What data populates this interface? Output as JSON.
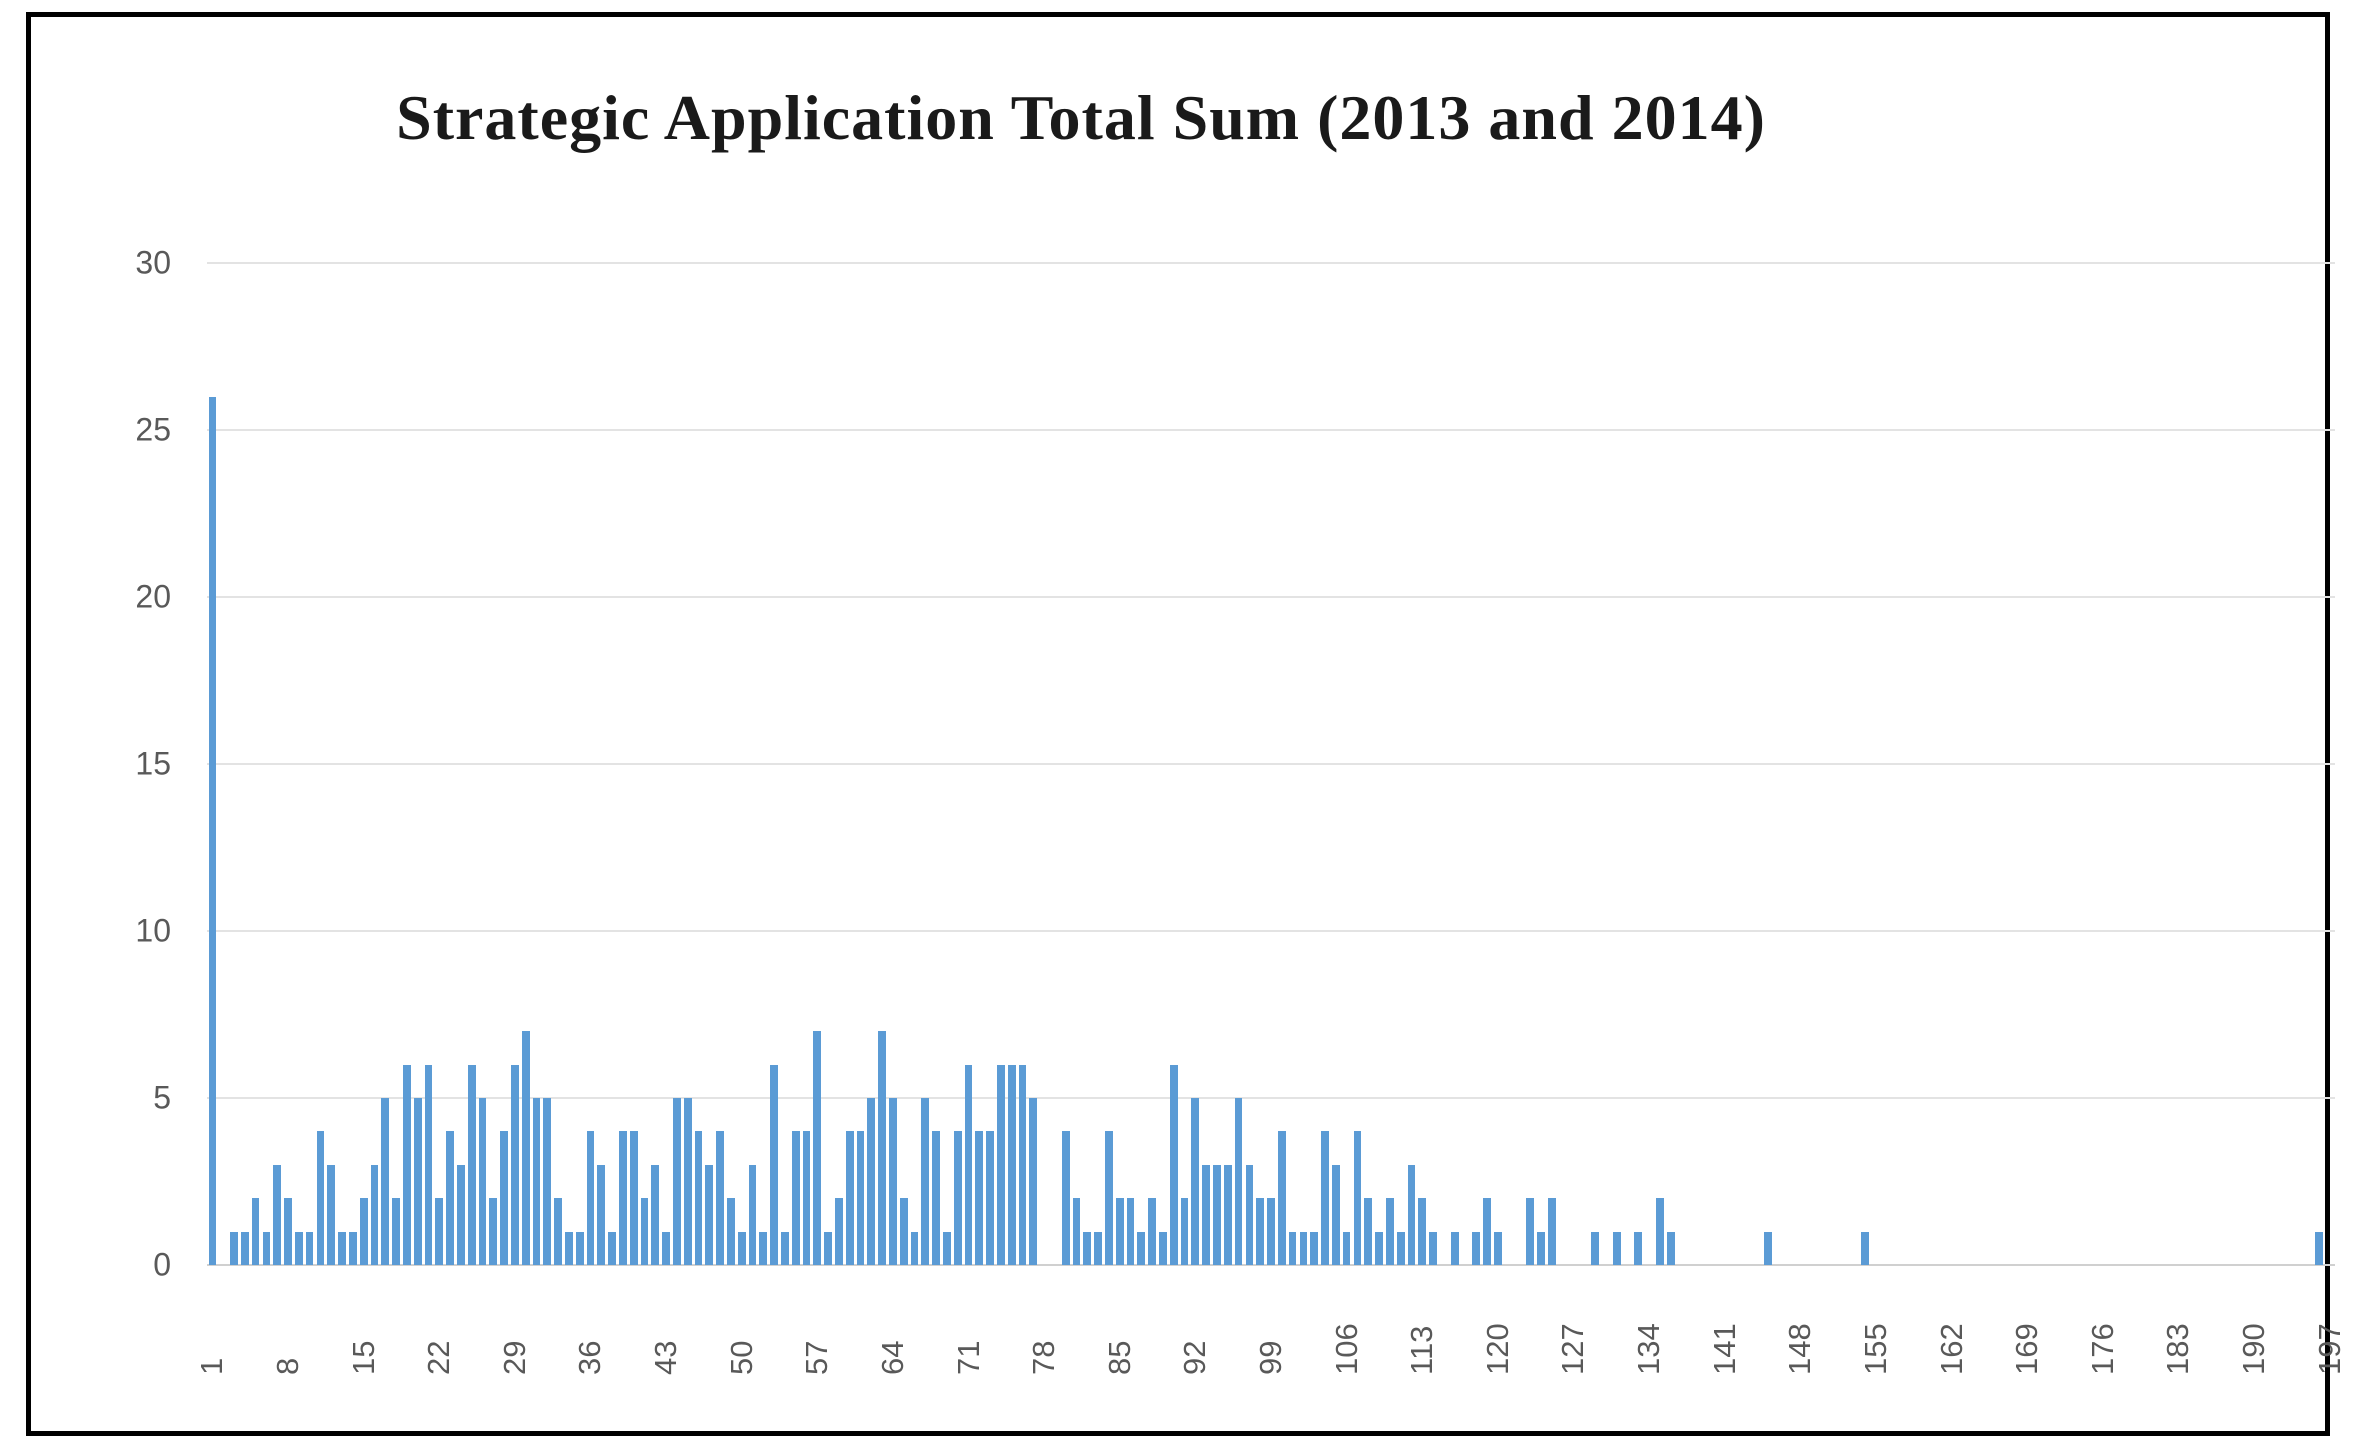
{
  "figure": {
    "title": "Strategic Application Total Sum (2013 and 2014)"
  },
  "chart_data": {
    "type": "bar",
    "title": "Strategic Application Total Sum (2013 and 2014)",
    "xlabel": "",
    "ylabel": "",
    "ylim": [
      0,
      30
    ],
    "yticks": [
      0,
      5,
      10,
      15,
      20,
      25,
      30
    ],
    "grid": true,
    "legend": "none",
    "bar_color": "#5b9bd5",
    "gridline_color": "#e3e3e3",
    "axis_label_color": "#595959",
    "categories_range": "1 to 197",
    "xtick_step": 7,
    "xtick_labels": [
      "1",
      "8",
      "15",
      "22",
      "29",
      "36",
      "43",
      "50",
      "57",
      "64",
      "71",
      "78",
      "85",
      "92",
      "99",
      "106",
      "113",
      "120",
      "127",
      "134",
      "141",
      "148",
      "155",
      "162",
      "169",
      "176",
      "183",
      "190",
      "197"
    ],
    "values": [
      26,
      0,
      1,
      1,
      2,
      1,
      3,
      2,
      1,
      1,
      4,
      3,
      1,
      1,
      2,
      3,
      5,
      2,
      6,
      5,
      6,
      2,
      4,
      3,
      6,
      5,
      2,
      4,
      6,
      7,
      5,
      5,
      2,
      1,
      1,
      4,
      3,
      1,
      4,
      4,
      2,
      3,
      1,
      5,
      5,
      4,
      3,
      4,
      2,
      1,
      3,
      1,
      6,
      1,
      4,
      4,
      7,
      1,
      2,
      4,
      4,
      5,
      7,
      5,
      2,
      1,
      5,
      4,
      1,
      4,
      6,
      4,
      4,
      6,
      6,
      6,
      5,
      0,
      0,
      4,
      2,
      1,
      1,
      4,
      2,
      2,
      1,
      2,
      1,
      6,
      2,
      5,
      3,
      3,
      3,
      5,
      3,
      2,
      2,
      4,
      1,
      1,
      1,
      4,
      3,
      1,
      4,
      2,
      1,
      2,
      1,
      3,
      2,
      1,
      0,
      1,
      0,
      1,
      2,
      1,
      0,
      0,
      2,
      1,
      2,
      0,
      0,
      0,
      1,
      0,
      1,
      0,
      1,
      0,
      2,
      1,
      0,
      0,
      0,
      0,
      0,
      0,
      0,
      0,
      1,
      0,
      0,
      0,
      0,
      0,
      0,
      0,
      0,
      1,
      0,
      0,
      0,
      0,
      0,
      0,
      0,
      0,
      0,
      0,
      0,
      0,
      0,
      0,
      0,
      0,
      0,
      0,
      0,
      0,
      0,
      0,
      0,
      0,
      0,
      0,
      0,
      0,
      0,
      0,
      0,
      0,
      0,
      0,
      0,
      0,
      0,
      0,
      0,
      0,
      0,
      1,
      0
    ]
  }
}
